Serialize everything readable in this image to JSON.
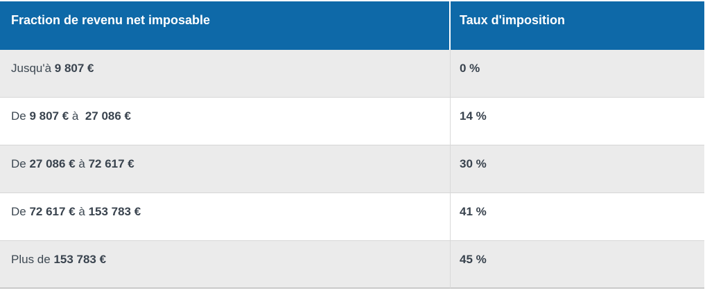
{
  "table": {
    "headers": {
      "bracket": "Fraction de revenu net imposable",
      "rate": "Taux d'imposition"
    },
    "rows": [
      {
        "bracket": [
          {
            "text": "Jusqu'à ",
            "bold": false
          },
          {
            "text": "9 807 €",
            "bold": true
          }
        ],
        "rate": "0 %"
      },
      {
        "bracket": [
          {
            "text": "De ",
            "bold": false
          },
          {
            "text": "9 807 €",
            "bold": true
          },
          {
            "text": " à  ",
            "bold": false
          },
          {
            "text": "27 086 €",
            "bold": true
          }
        ],
        "rate": "14 %"
      },
      {
        "bracket": [
          {
            "text": "De ",
            "bold": false
          },
          {
            "text": "27 086 €",
            "bold": true
          },
          {
            "text": " à ",
            "bold": false
          },
          {
            "text": "72 617 €",
            "bold": true
          }
        ],
        "rate": "30 %"
      },
      {
        "bracket": [
          {
            "text": "De ",
            "bold": false
          },
          {
            "text": "72 617 €",
            "bold": true
          },
          {
            "text": " à ",
            "bold": false
          },
          {
            "text": "153 783 €",
            "bold": true
          }
        ],
        "rate": "41 %"
      },
      {
        "bracket": [
          {
            "text": "Plus de ",
            "bold": false
          },
          {
            "text": "153 783 €",
            "bold": true
          }
        ],
        "rate": "45 %"
      }
    ]
  },
  "colors": {
    "header_background": "#0e69a8",
    "header_text": "#ffffff",
    "row_alt_background": "#ebebeb",
    "row_background": "#ffffff",
    "body_text": "#3d4852",
    "row_border": "#d6d6d6",
    "bottom_border": "#c9c9c9"
  }
}
